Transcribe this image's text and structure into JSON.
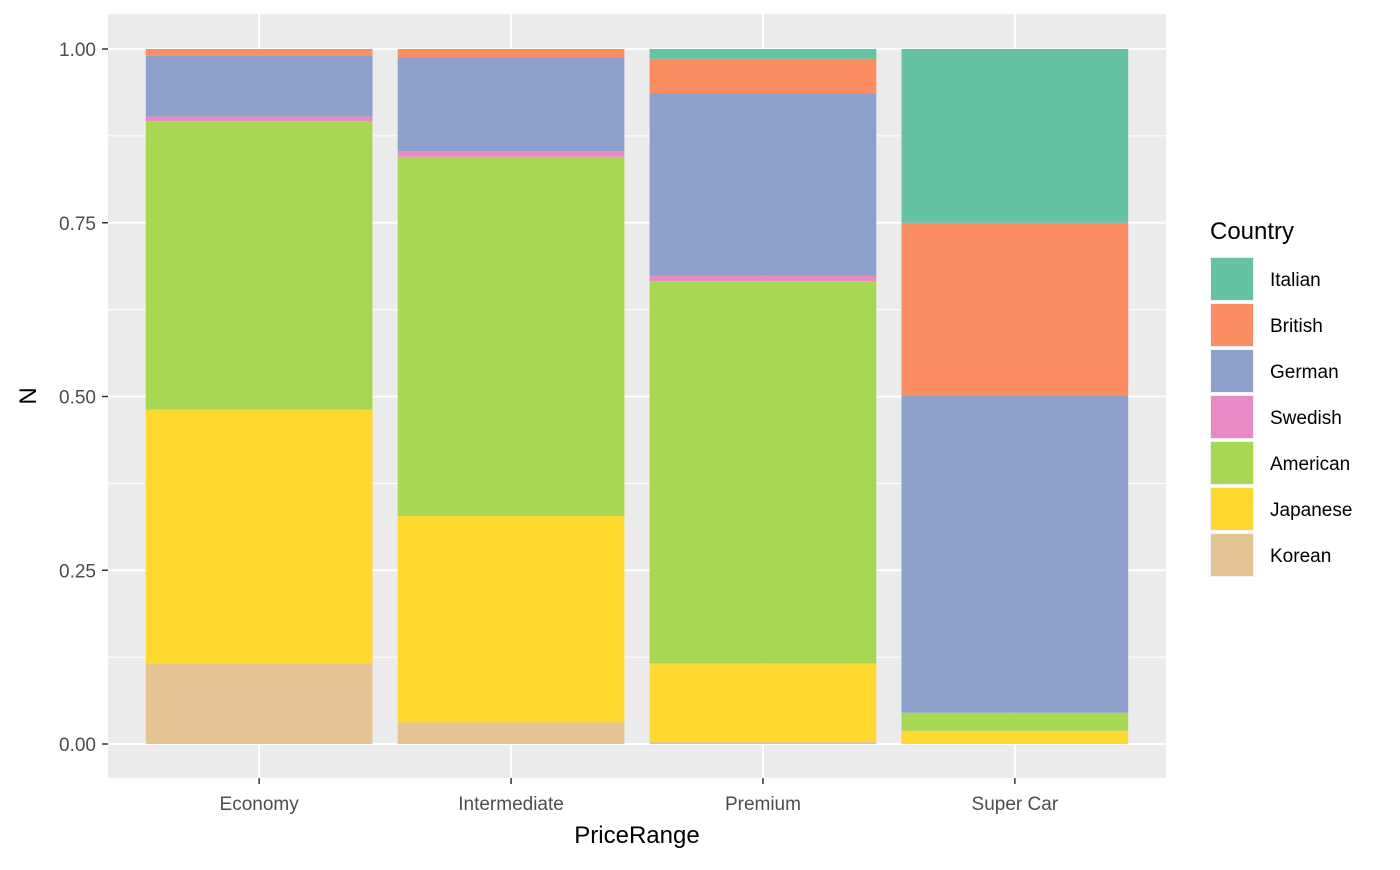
{
  "chart_data": {
    "type": "bar",
    "stacked": "fill",
    "xlabel": "PriceRange",
    "ylabel": "N",
    "ylim": [
      0,
      1
    ],
    "yticks": [
      "0.00",
      "0.25",
      "0.50",
      "0.75",
      "1.00"
    ],
    "ytick_values": [
      0,
      0.25,
      0.5,
      0.75,
      1.0
    ],
    "categories": [
      "Economy",
      "Intermediate",
      "Premium",
      "Super Car"
    ],
    "legend_title": "Country",
    "legend_position": "right",
    "grid": true,
    "background": "#ebebeb",
    "series": [
      {
        "name": "Italian",
        "color": "#66c2a5",
        "values": [
          0.0,
          0.0,
          0.014,
          0.25
        ]
      },
      {
        "name": "British",
        "color": "#fc8d62",
        "values": [
          0.01,
          0.012,
          0.05,
          0.248
        ]
      },
      {
        "name": "German",
        "color": "#8da0cb",
        "values": [
          0.087,
          0.135,
          0.262,
          0.457
        ]
      },
      {
        "name": "Swedish",
        "color": "#e78ac3",
        "values": [
          0.007,
          0.008,
          0.008,
          0.0
        ]
      },
      {
        "name": "American",
        "color": "#a6d854",
        "values": [
          0.415,
          0.517,
          0.55,
          0.026
        ]
      },
      {
        "name": "Japanese",
        "color": "#ffd92f",
        "values": [
          0.366,
          0.297,
          0.113,
          0.019
        ]
      },
      {
        "name": "Korean",
        "color": "#e5c494",
        "values": [
          0.115,
          0.031,
          0.003,
          0.0
        ]
      }
    ]
  }
}
